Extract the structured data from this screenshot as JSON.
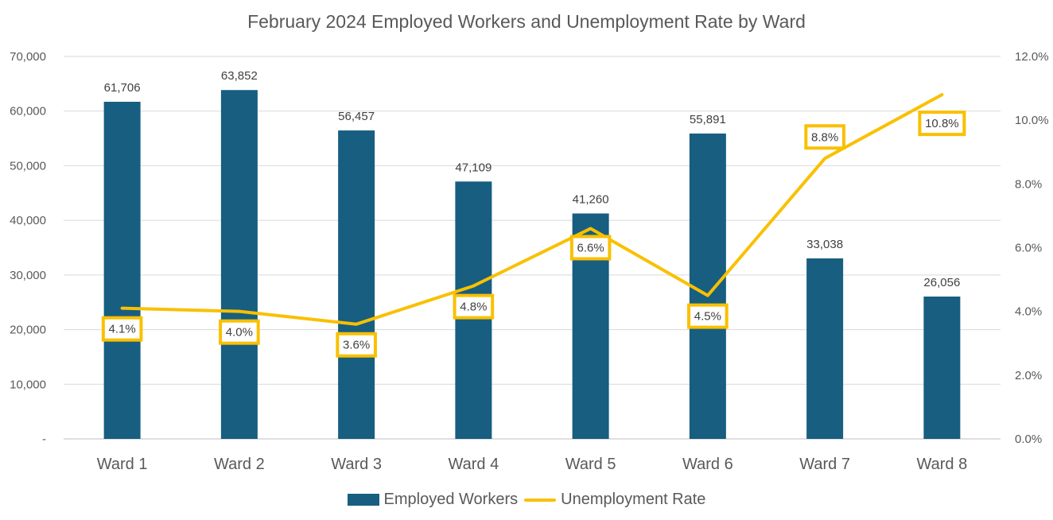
{
  "chart_data": {
    "type": "bar",
    "title": "February 2024 Employed Workers and Unemployment Rate by Ward",
    "categories": [
      "Ward 1",
      "Ward 2",
      "Ward 3",
      "Ward 4",
      "Ward 5",
      "Ward 6",
      "Ward 7",
      "Ward 8"
    ],
    "series": [
      {
        "name": "Employed Workers",
        "type": "bar",
        "axis": "left",
        "color": "#175e80",
        "values": [
          61706,
          63852,
          56457,
          47109,
          41260,
          55891,
          33038,
          26056
        ],
        "labels": [
          "61,706",
          "63,852",
          "56,457",
          "47,109",
          "41,260",
          "55,891",
          "33,038",
          "26,056"
        ]
      },
      {
        "name": "Unemployment Rate",
        "type": "line",
        "axis": "right",
        "color": "#f9c000",
        "values": [
          4.1,
          4.0,
          3.6,
          4.8,
          6.6,
          4.5,
          8.8,
          10.8
        ],
        "labels": [
          "4.1%",
          "4.0%",
          "3.6%",
          "4.8%",
          "6.6%",
          "4.5%",
          "8.8%",
          "10.8%"
        ]
      }
    ],
    "y_left": {
      "range": [
        0,
        70000
      ],
      "ticks": [
        0,
        10000,
        20000,
        30000,
        40000,
        50000,
        60000,
        70000
      ],
      "tick_labels": [
        "-",
        "10,000",
        "20,000",
        "30,000",
        "40,000",
        "50,000",
        "60,000",
        "70,000"
      ]
    },
    "y_right": {
      "range": [
        0,
        12
      ],
      "ticks": [
        0,
        2,
        4,
        6,
        8,
        10,
        12
      ],
      "tick_labels": [
        "0.0%",
        "2.0%",
        "4.0%",
        "6.0%",
        "8.0%",
        "10.0%",
        "12.0%"
      ]
    },
    "grid": true,
    "legend_position": "bottom"
  }
}
